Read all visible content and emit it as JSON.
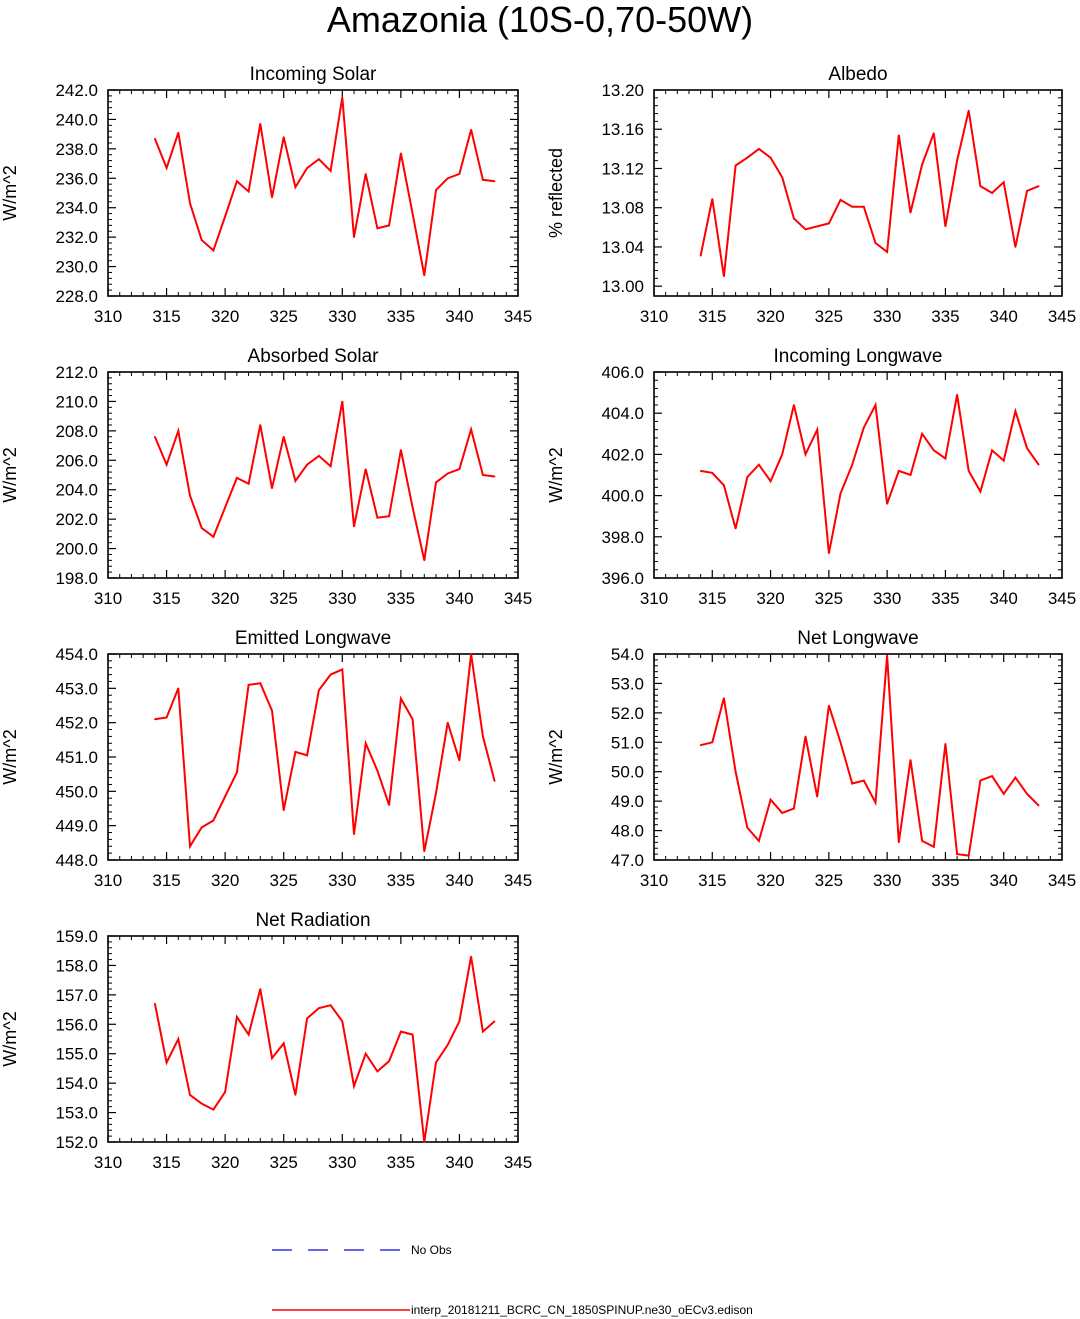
{
  "title": "Amazonia (10S-0,70-50W)",
  "legend": {
    "obs_label": "No Obs",
    "model_label": "interp_20181211_BCRC_CN_1850SPINUP.ne30_oECv3.edison"
  },
  "colors": {
    "model": "#ff0000",
    "obs": "#3333dd",
    "axis": "#000000"
  },
  "chart_data": [
    {
      "type": "line",
      "title": "Incoming Solar",
      "ylabel": "W/m^2",
      "xlim": [
        310,
        345
      ],
      "xticks": [
        "310",
        "315",
        "320",
        "325",
        "330",
        "335",
        "340",
        "345"
      ],
      "ylim": [
        228.0,
        242.0
      ],
      "yticks": [
        "228.0",
        "230.0",
        "232.0",
        "234.0",
        "236.0",
        "238.0",
        "240.0",
        "242.0"
      ],
      "x": [
        314,
        315,
        316,
        317,
        318,
        319,
        320,
        321,
        322,
        323,
        324,
        325,
        326,
        327,
        328,
        329,
        330,
        331,
        332,
        333,
        334,
        335,
        336,
        337,
        338,
        339,
        340,
        341,
        342,
        343
      ],
      "values": [
        238.7,
        236.7,
        239.1,
        234.3,
        231.8,
        231.1,
        233.4,
        235.8,
        235.1,
        239.7,
        234.7,
        238.8,
        235.4,
        236.7,
        237.3,
        236.5,
        241.5,
        232.0,
        236.3,
        232.6,
        232.8,
        237.7,
        233.6,
        229.4,
        235.2,
        236.0,
        236.3,
        239.3,
        235.9,
        235.8
      ]
    },
    {
      "type": "line",
      "title": "Albedo",
      "ylabel": "% reflected",
      "xlim": [
        310,
        345
      ],
      "xticks": [
        "310",
        "315",
        "320",
        "325",
        "330",
        "335",
        "340",
        "345"
      ],
      "ylim": [
        12.99,
        13.2
      ],
      "yticks": [
        "13.00",
        "13.04",
        "13.08",
        "13.12",
        "13.16",
        "13.20"
      ],
      "ytick_values": [
        13.0,
        13.04,
        13.08,
        13.12,
        13.16,
        13.2
      ],
      "x": [
        314,
        315,
        316,
        317,
        318,
        319,
        320,
        321,
        322,
        323,
        324,
        325,
        326,
        327,
        328,
        329,
        330,
        331,
        332,
        333,
        334,
        335,
        336,
        337,
        338,
        339,
        340,
        341,
        342,
        343
      ],
      "values": [
        13.031,
        13.089,
        13.01,
        13.123,
        13.131,
        13.14,
        13.131,
        13.111,
        13.069,
        13.058,
        13.061,
        13.064,
        13.088,
        13.081,
        13.081,
        13.044,
        13.035,
        13.154,
        13.075,
        13.124,
        13.156,
        13.061,
        13.128,
        13.179,
        13.102,
        13.095,
        13.106,
        13.04,
        13.097,
        13.102
      ]
    },
    {
      "type": "line",
      "title": "Absorbed Solar",
      "ylabel": "W/m^2",
      "xlim": [
        310,
        345
      ],
      "xticks": [
        "310",
        "315",
        "320",
        "325",
        "330",
        "335",
        "340",
        "345"
      ],
      "ylim": [
        198.0,
        212.0
      ],
      "yticks": [
        "198.0",
        "200.0",
        "202.0",
        "204.0",
        "206.0",
        "208.0",
        "210.0",
        "212.0"
      ],
      "x": [
        314,
        315,
        316,
        317,
        318,
        319,
        320,
        321,
        322,
        323,
        324,
        325,
        326,
        327,
        328,
        329,
        330,
        331,
        332,
        333,
        334,
        335,
        336,
        337,
        338,
        339,
        340,
        341,
        342,
        343
      ],
      "values": [
        207.6,
        205.7,
        208.0,
        203.6,
        201.4,
        200.8,
        202.8,
        204.8,
        204.4,
        208.4,
        204.1,
        207.6,
        204.6,
        205.7,
        206.3,
        205.6,
        210.0,
        201.5,
        205.4,
        202.1,
        202.2,
        206.7,
        202.8,
        199.2,
        204.5,
        205.1,
        205.4,
        208.1,
        205.0,
        204.9
      ]
    },
    {
      "type": "line",
      "title": "Incoming Longwave",
      "ylabel": "W/m^2",
      "xlim": [
        310,
        345
      ],
      "xticks": [
        "310",
        "315",
        "320",
        "325",
        "330",
        "335",
        "340",
        "345"
      ],
      "ylim": [
        396.0,
        406.0
      ],
      "yticks": [
        "396.0",
        "398.0",
        "400.0",
        "402.0",
        "404.0",
        "406.0"
      ],
      "x": [
        314,
        315,
        316,
        317,
        318,
        319,
        320,
        321,
        322,
        323,
        324,
        325,
        326,
        327,
        328,
        329,
        330,
        331,
        332,
        333,
        334,
        335,
        336,
        337,
        338,
        339,
        340,
        341,
        342,
        343
      ],
      "values": [
        401.2,
        401.1,
        400.5,
        398.4,
        400.9,
        401.5,
        400.7,
        402.0,
        404.4,
        402.0,
        403.2,
        397.2,
        400.1,
        401.5,
        403.3,
        404.4,
        399.6,
        401.2,
        401.0,
        403.0,
        402.2,
        401.8,
        404.9,
        401.2,
        400.2,
        402.2,
        401.7,
        404.1,
        402.3,
        401.5
      ]
    },
    {
      "type": "line",
      "title": "Emitted Longwave",
      "ylabel": "W/m^2",
      "xlim": [
        310,
        345
      ],
      "xticks": [
        "310",
        "315",
        "320",
        "325",
        "330",
        "335",
        "340",
        "345"
      ],
      "ylim": [
        448.0,
        454.0
      ],
      "yticks": [
        "448.0",
        "449.0",
        "450.0",
        "451.0",
        "452.0",
        "453.0",
        "454.0"
      ],
      "x": [
        314,
        315,
        316,
        317,
        318,
        319,
        320,
        321,
        322,
        323,
        324,
        325,
        326,
        327,
        328,
        329,
        330,
        331,
        332,
        333,
        334,
        335,
        336,
        337,
        338,
        339,
        340,
        341,
        342,
        343
      ],
      "values": [
        452.1,
        452.15,
        453.0,
        448.4,
        448.95,
        449.15,
        449.85,
        450.55,
        453.1,
        453.15,
        452.35,
        449.45,
        451.15,
        451.05,
        452.95,
        453.4,
        453.55,
        448.75,
        451.4,
        450.6,
        449.6,
        452.7,
        452.1,
        448.25,
        449.95,
        452.0,
        450.9,
        454.0,
        451.6,
        450.3
      ]
    },
    {
      "type": "line",
      "title": "Net Longwave",
      "ylabel": "W/m^2",
      "xlim": [
        310,
        345
      ],
      "xticks": [
        "310",
        "315",
        "320",
        "325",
        "330",
        "335",
        "340",
        "345"
      ],
      "ylim": [
        47.0,
        54.0
      ],
      "yticks": [
        "47.0",
        "48.0",
        "49.0",
        "50.0",
        "51.0",
        "52.0",
        "53.0",
        "54.0"
      ],
      "x": [
        314,
        315,
        316,
        317,
        318,
        319,
        320,
        321,
        322,
        323,
        324,
        325,
        326,
        327,
        328,
        329,
        330,
        331,
        332,
        333,
        334,
        335,
        336,
        337,
        338,
        339,
        340,
        341,
        342,
        343
      ],
      "values": [
        50.9,
        51.0,
        52.5,
        50.0,
        48.1,
        47.65,
        49.05,
        48.6,
        48.75,
        51.2,
        49.15,
        52.25,
        51.0,
        49.6,
        49.7,
        48.95,
        53.95,
        47.6,
        50.4,
        47.65,
        47.45,
        50.95,
        47.2,
        47.15,
        49.7,
        49.85,
        49.25,
        49.8,
        49.25,
        48.85
      ]
    },
    {
      "type": "line",
      "title": "Net Radiation",
      "ylabel": "W/m^2",
      "xlim": [
        310,
        345
      ],
      "xticks": [
        "310",
        "315",
        "320",
        "325",
        "330",
        "335",
        "340",
        "345"
      ],
      "ylim": [
        152.0,
        159.0
      ],
      "yticks": [
        "152.0",
        "153.0",
        "154.0",
        "155.0",
        "156.0",
        "157.0",
        "158.0",
        "159.0"
      ],
      "x": [
        314,
        315,
        316,
        317,
        318,
        319,
        320,
        321,
        322,
        323,
        324,
        325,
        326,
        327,
        328,
        329,
        330,
        331,
        332,
        333,
        334,
        335,
        336,
        337,
        338,
        339,
        340,
        341,
        342,
        343
      ],
      "values": [
        156.7,
        154.7,
        155.5,
        153.6,
        153.3,
        153.1,
        153.7,
        156.25,
        155.65,
        157.2,
        154.85,
        155.35,
        153.6,
        156.2,
        156.55,
        156.65,
        156.1,
        153.9,
        155.0,
        154.4,
        154.75,
        155.75,
        155.65,
        152.0,
        154.7,
        155.3,
        156.1,
        158.3,
        155.75,
        156.1
      ]
    }
  ]
}
